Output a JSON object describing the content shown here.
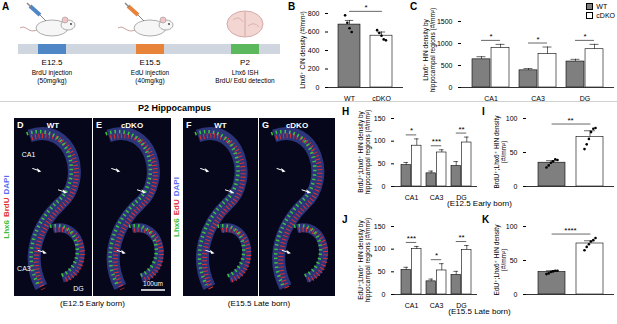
{
  "schematic": {
    "letter": "A",
    "stages": [
      {
        "label": "E12.5",
        "color": "#4f86c6",
        "note": [
          "BrdU injection",
          "(50mg/kg)"
        ]
      },
      {
        "label": "E15.5",
        "color": "#e8833a",
        "note": [
          "EdU injection",
          "(40mg/kg)"
        ]
      },
      {
        "label": "P2",
        "color": "#5cb85c",
        "note": [
          "Lhx6 ISH",
          "BrdU/ EdU detection"
        ]
      }
    ]
  },
  "section_title": "P2 Hippocampus",
  "images": [
    {
      "letter": "D",
      "label": "WT"
    },
    {
      "letter": "E",
      "label": "cDKO"
    },
    {
      "letter": "F",
      "label": "WT"
    },
    {
      "letter": "G",
      "label": "cDKO"
    }
  ],
  "image_markers": [
    "CA1",
    "CA3",
    "DG"
  ],
  "stains": [
    [
      {
        "text": "Lhx6",
        "color": "#3ec03e"
      },
      {
        "text": "BrdU",
        "color": "#e03030"
      },
      {
        "text": "DAPI",
        "color": "#5a6cf0"
      }
    ],
    [
      {
        "text": "Lhx6",
        "color": "#3ec03e"
      },
      {
        "text": "EdU",
        "color": "#e03030"
      },
      {
        "text": "DAPI",
        "color": "#5a6cf0"
      }
    ]
  ],
  "scale_bar": "100um",
  "captions": [
    "(E12.5 Early born)",
    "(E15.5 Late born)"
  ],
  "chart_data": [
    {
      "letter": "B",
      "type": "bar",
      "y_label": "Lhx6⁺ CIN density (#/mm²)",
      "categories": [
        "WT",
        "cDKO"
      ],
      "values": [
        680,
        560
      ],
      "errors": [
        45,
        40
      ],
      "points": [
        [
          780,
          700,
          640,
          600
        ],
        [
          620,
          590,
          560,
          520,
          510
        ]
      ],
      "colors": [
        "#7f7f7f",
        "#ffffff"
      ],
      "significance": [
        "*"
      ],
      "ylim": [
        0,
        800
      ],
      "yticks": [
        0,
        200,
        400,
        600,
        800
      ]
    },
    {
      "letter": "C",
      "type": "bar",
      "y_label": "Lhx6⁺ HIN density by hippocampal regions (#/mm²)",
      "categories": [
        "CA1",
        "CA3",
        "DG"
      ],
      "series": [
        {
          "name": "WT",
          "color": "#7f7f7f",
          "values": [
            640,
            390,
            590
          ],
          "errors": [
            60,
            40,
            50
          ]
        },
        {
          "name": "cDKO",
          "color": "#ffffff",
          "values": [
            900,
            760,
            870
          ],
          "errors": [
            80,
            160,
            110
          ]
        }
      ],
      "significance": [
        "*",
        "*",
        "*"
      ],
      "legend": "top-right",
      "ylim": [
        0,
        1500
      ],
      "yticks": [
        0,
        500,
        1000,
        1500
      ]
    },
    {
      "letter": "H",
      "type": "bar",
      "y_label": "BrdU⁺;Lhx6⁺ HIN density by hippocampal regions (#/mm²)",
      "categories": [
        "CA1",
        "CA3",
        "DG"
      ],
      "series": [
        {
          "name": "WT",
          "color": "#7f7f7f",
          "values": [
            47,
            29,
            45
          ],
          "errors": [
            6,
            5,
            10
          ]
        },
        {
          "name": "cDKO",
          "color": "#ffffff",
          "values": [
            90,
            75,
            97
          ],
          "errors": [
            15,
            6,
            12
          ]
        }
      ],
      "significance": [
        "*",
        "***",
        "**"
      ],
      "caption": "(E12.5 Early born)",
      "ylim": [
        0,
        150
      ],
      "yticks": [
        0,
        50,
        100,
        150
      ]
    },
    {
      "letter": "I",
      "type": "bar",
      "y_label": "BrdU⁺;Lhx6⁺ HIN density (#/mm²)",
      "categories": [
        null,
        null
      ],
      "values": [
        35,
        73
      ],
      "errors": [
        3,
        9
      ],
      "points": [
        [
          28,
          31,
          35,
          37,
          40,
          39
        ],
        [
          55,
          62,
          70,
          80,
          85,
          86
        ]
      ],
      "colors": [
        "#7f7f7f",
        "#ffffff"
      ],
      "significance": [
        "**"
      ],
      "ylim": [
        0,
        100
      ],
      "yticks": [
        0,
        50,
        100
      ]
    },
    {
      "letter": "J",
      "type": "bar",
      "y_label": "EdU⁺;Lhx6⁺ HIN density by hippocampal regions (#/mm²)",
      "categories": [
        "CA1",
        "CA3",
        "DG"
      ],
      "series": [
        {
          "name": "WT",
          "color": "#7f7f7f",
          "values": [
            54,
            29,
            43
          ],
          "errors": [
            6,
            5,
            8
          ]
        },
        {
          "name": "cDKO",
          "color": "#ffffff",
          "values": [
            100,
            53,
            98
          ],
          "errors": [
            6,
            15,
            10
          ]
        }
      ],
      "significance": [
        "***",
        "*",
        "**"
      ],
      "caption": "(E15.5 Late born)",
      "ylim": [
        0,
        150
      ],
      "yticks": [
        0,
        50,
        100,
        150
      ]
    },
    {
      "letter": "K",
      "type": "bar",
      "y_label": "EdU⁺;Lhx6⁺ HIN density (#/mm²)",
      "categories": [
        null,
        null
      ],
      "values": [
        33,
        75
      ],
      "errors": [
        2,
        4
      ],
      "points": [
        [
          30,
          31,
          33,
          34,
          35,
          35
        ],
        [
          65,
          70,
          74,
          78,
          80,
          83
        ]
      ],
      "colors": [
        "#7f7f7f",
        "#ffffff"
      ],
      "significance": [
        "****"
      ],
      "ylim": [
        0,
        100
      ],
      "yticks": [
        0,
        50,
        100
      ]
    }
  ]
}
